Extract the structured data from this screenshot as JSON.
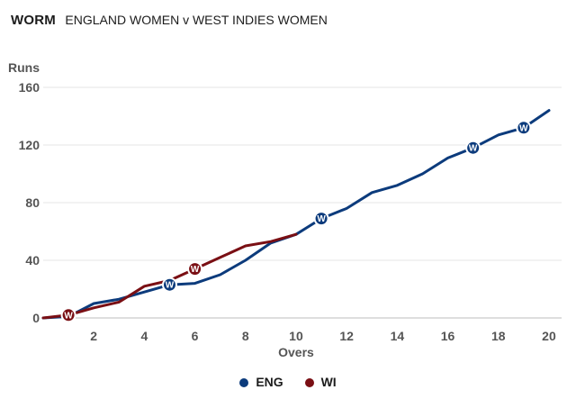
{
  "header": {
    "title": "WORM",
    "subtitle": "ENGLAND WOMEN v WEST INDIES WOMEN"
  },
  "colors": {
    "ENG": "#0c3b7c",
    "WI": "#7a0f14"
  },
  "chart_data": {
    "type": "line",
    "title": "WORM",
    "subtitle": "ENGLAND WOMEN v WEST INDIES WOMEN",
    "xlabel": "Overs",
    "ylabel": "Runs",
    "xlim": [
      0,
      20.5
    ],
    "ylim": [
      0,
      160
    ],
    "xticks": [
      2,
      4,
      6,
      8,
      10,
      12,
      14,
      16,
      18,
      20
    ],
    "yticks": [
      0,
      40,
      80,
      120,
      160
    ],
    "grid": true,
    "legend_position": "bottom-center",
    "wicket_marker_label": "W",
    "series": [
      {
        "name": "ENG",
        "color": "#0c3b7c",
        "points": [
          [
            0,
            0
          ],
          [
            1,
            1
          ],
          [
            2,
            10
          ],
          [
            3,
            13
          ],
          [
            4,
            18
          ],
          [
            5,
            23
          ],
          [
            6,
            24
          ],
          [
            7,
            30
          ],
          [
            8,
            40
          ],
          [
            9,
            52
          ],
          [
            10,
            58
          ],
          [
            11,
            69
          ],
          [
            12,
            76
          ],
          [
            13,
            87
          ],
          [
            14,
            92
          ],
          [
            15,
            100
          ],
          [
            16,
            111
          ],
          [
            17,
            118
          ],
          [
            18,
            127
          ],
          [
            19,
            132
          ],
          [
            20,
            144
          ]
        ],
        "wickets": [
          [
            5,
            23
          ],
          [
            11,
            69
          ],
          [
            17,
            118
          ],
          [
            19,
            132
          ]
        ]
      },
      {
        "name": "WI",
        "color": "#7a0f14",
        "points": [
          [
            0,
            0
          ],
          [
            1,
            2
          ],
          [
            2,
            7
          ],
          [
            3,
            11
          ],
          [
            4,
            22
          ],
          [
            5,
            26
          ],
          [
            6,
            34
          ],
          [
            7,
            42
          ],
          [
            8,
            50
          ],
          [
            9,
            53
          ],
          [
            10,
            58
          ]
        ],
        "wickets": [
          [
            1,
            2
          ],
          [
            6,
            34
          ]
        ]
      }
    ]
  }
}
